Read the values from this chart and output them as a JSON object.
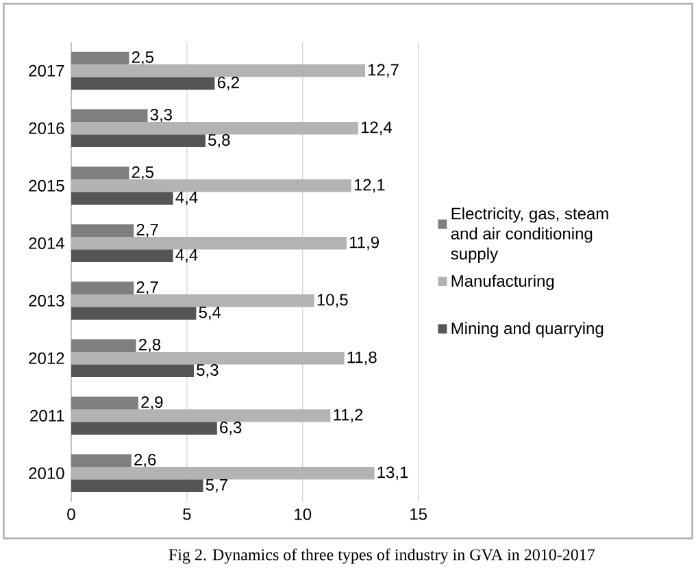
{
  "chart_data": {
    "type": "bar",
    "orientation": "horizontal",
    "title": "Fig 2. Dynamics of three types of industry in GVA in 2010-2017",
    "categories": [
      "2017",
      "2016",
      "2015",
      "2014",
      "2013",
      "2012",
      "2011",
      "2010"
    ],
    "series": [
      {
        "name": "Electricity, gas, steam and air conditioning supply",
        "color": "#7f7f7f",
        "values": [
          2.5,
          3.3,
          2.5,
          2.7,
          2.7,
          2.8,
          2.9,
          2.6
        ],
        "value_labels": [
          "2,5",
          "3,3",
          "2,5",
          "2,7",
          "2,7",
          "2,8",
          "2,9",
          "2,6"
        ]
      },
      {
        "name": "Manufacturing",
        "color": "#b3b3b3",
        "values": [
          12.7,
          12.4,
          12.1,
          11.9,
          10.5,
          11.8,
          11.2,
          13.1
        ],
        "value_labels": [
          "12,7",
          "12,4",
          "12,1",
          "11,9",
          "10,5",
          "11,8",
          "11,2",
          "13,1"
        ]
      },
      {
        "name": "Mining and quarrying",
        "color": "#555555",
        "values": [
          6.2,
          5.8,
          4.4,
          4.4,
          5.4,
          5.3,
          6.3,
          5.7
        ],
        "value_labels": [
          "6,2",
          "5,8",
          "4,4",
          "4,4",
          "5,4",
          "5,3",
          "6,3",
          "5,7"
        ]
      }
    ],
    "xlim": [
      0,
      15
    ],
    "xticks": [
      0,
      5,
      10,
      15
    ],
    "grid": "x",
    "legend": "right"
  }
}
